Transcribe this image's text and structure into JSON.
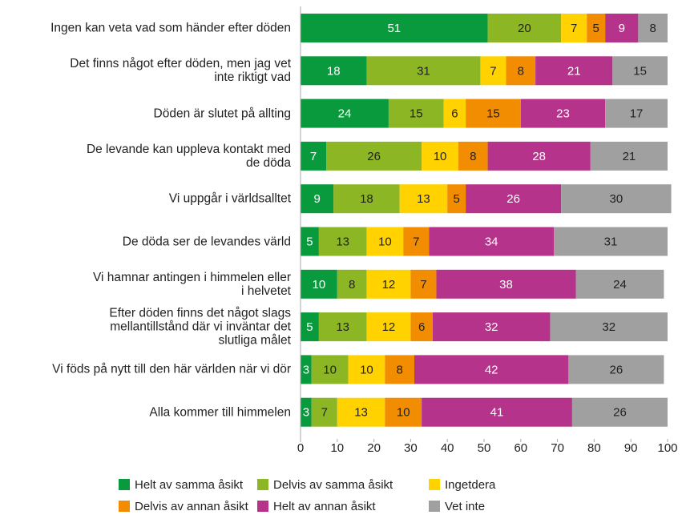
{
  "chart_data": {
    "type": "stacked_bar_horizontal",
    "categories": [
      "Ingen kan veta vad som händer efter döden",
      "Det finns något efter döden, men jag vet\ninte riktigt vad",
      "Döden är slutet på allting",
      "De levande kan uppleva kontakt med\nde döda",
      "Vi uppgår i världsalltet",
      "De döda ser de levandes värld",
      "Vi hamnar antingen i himmelen eller\ni helvetet",
      "Efter döden finns det något slags\nmellantillstånd där vi inväntar det\nslutliga målet",
      "Vi föds på nytt till den här världen när vi dör",
      "Alla kommer till himmelen"
    ],
    "series": [
      {
        "name": "Helt av samma åsikt",
        "color": "#0a9a3e",
        "values": [
          51,
          18,
          24,
          7,
          9,
          5,
          10,
          5,
          3,
          3
        ]
      },
      {
        "name": "Delvis av samma åsikt",
        "color": "#8db624",
        "values": [
          20,
          31,
          15,
          26,
          18,
          13,
          8,
          13,
          10,
          7
        ]
      },
      {
        "name": "Ingetdera",
        "color": "#ffd200",
        "values": [
          7,
          7,
          6,
          10,
          13,
          10,
          12,
          12,
          10,
          13
        ]
      },
      {
        "name": "Delvis av annan åsikt",
        "color": "#f28c00",
        "values": [
          5,
          8,
          15,
          8,
          5,
          7,
          7,
          6,
          8,
          10
        ]
      },
      {
        "name": "Helt av annan åsikt",
        "color": "#b5338a",
        "values": [
          9,
          21,
          23,
          28,
          26,
          34,
          38,
          32,
          42,
          41
        ]
      },
      {
        "name": "Vet inte",
        "color": "#a0a0a0",
        "values": [
          8,
          15,
          17,
          21,
          30,
          31,
          24,
          32,
          26,
          26
        ]
      }
    ],
    "xlim": [
      0,
      100
    ],
    "xticks": [
      0,
      10,
      20,
      30,
      40,
      50,
      60,
      70,
      80,
      90,
      100
    ]
  }
}
